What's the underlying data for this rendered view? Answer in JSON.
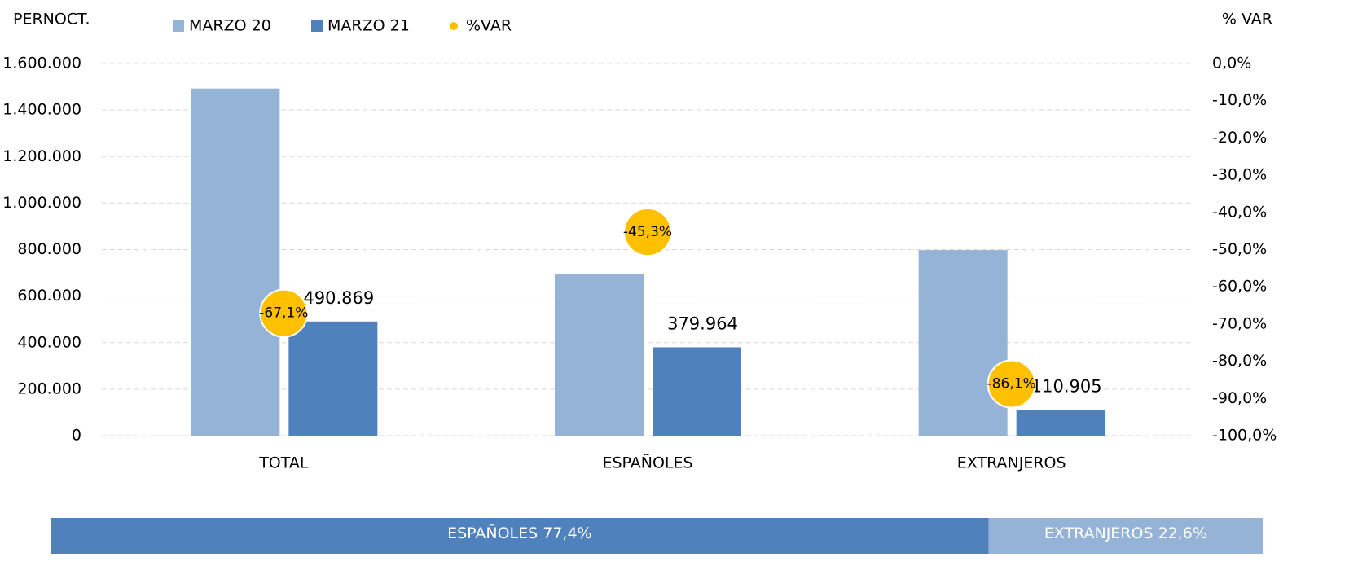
{
  "chart_data": [
    {
      "type": "bar",
      "ylabel": "PERNOCT.",
      "y2label": "% VAR",
      "categories": [
        "TOTAL",
        "ESPAÑOLES",
        "EXTRANJEROS"
      ],
      "series": [
        {
          "name": "MARZO 20",
          "color": "#95b3d7",
          "values": [
            1492500,
            694600,
            797900
          ]
        },
        {
          "name": "MARZO 21",
          "color": "#4f81bd",
          "values": [
            490869,
            379964,
            110905
          ],
          "value_labels": [
            "490.869",
            "379.964",
            "110.905"
          ]
        },
        {
          "name": "%VAR",
          "color": "#ffc000",
          "type": "scatter",
          "axis": "y2",
          "values": [
            -67.1,
            -45.3,
            -86.1
          ],
          "value_labels": [
            "-67,1%",
            "-45,3%",
            "-86,1%"
          ]
        }
      ],
      "ylim": [
        0,
        1600000
      ],
      "yticks": [
        0,
        {
          "value": 200000,
          "label": "200.000"
        },
        {
          "value": 400000,
          "label": "400.000"
        },
        {
          "value": 600000,
          "label": "600.000"
        },
        {
          "value": 800000,
          "label": "800.000"
        },
        {
          "value": 1000000,
          "label": "1.000.000"
        },
        {
          "value": 1200000,
          "label": "1.200.000"
        },
        {
          "value": 1400000,
          "label": "1.400.000"
        },
        {
          "value": 1600000,
          "label": "1.600.000"
        }
      ],
      "y2lim": [
        -100,
        0
      ],
      "y2ticks": [
        {
          "value": 0,
          "label": "0,0%"
        },
        {
          "value": -10,
          "label": "-10,0%"
        },
        {
          "value": -20,
          "label": "-20,0%"
        },
        {
          "value": -30,
          "label": "-30,0%"
        },
        {
          "value": -40,
          "label": "-40,0%"
        },
        {
          "value": -50,
          "label": "-50,0%"
        },
        {
          "value": -60,
          "label": "-60,0%"
        },
        {
          "value": -70,
          "label": "-70,0%"
        },
        {
          "value": -80,
          "label": "-80,0%"
        },
        {
          "value": -90,
          "label": "-90,0%"
        },
        {
          "value": -100,
          "label": "-100,0%"
        }
      ],
      "grid": true,
      "legend": "top"
    },
    {
      "type": "share",
      "categories": [
        "ESPAÑOLES",
        "EXTRANJEROS"
      ],
      "values": [
        77.4,
        22.6
      ],
      "value_labels": [
        "77,4%",
        "22,6%"
      ],
      "colors": [
        "#4f81bd",
        "#95b3d7"
      ]
    }
  ]
}
